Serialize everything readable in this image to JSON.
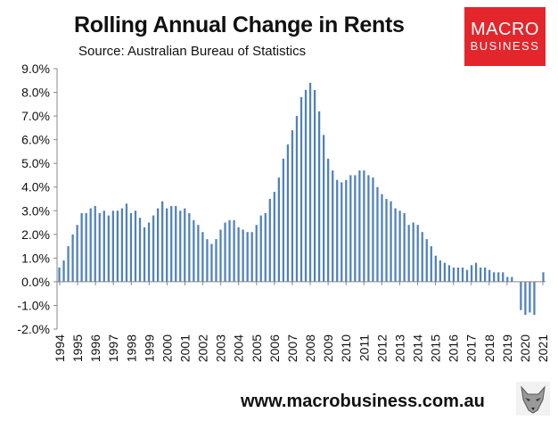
{
  "header": {
    "title": "Rolling Annual Change in Rents",
    "subtitle": "Source: Australian Bureau of Statistics"
  },
  "logo": {
    "line1": "MACRO",
    "line2": "BUSINESS"
  },
  "footer": {
    "url": "www.macrobusiness.com.au"
  },
  "colors": {
    "bar": "#4f81bd",
    "axis": "#888888",
    "logo_bg": "#e3262b"
  },
  "chart_data": {
    "type": "bar",
    "title": "Rolling Annual Change in Rents",
    "xlabel": "",
    "ylabel": "",
    "ylim": [
      -2.0,
      9.0
    ],
    "ytick_labels": [
      "9.0%",
      "8.0%",
      "7.0%",
      "6.0%",
      "5.0%",
      "4.0%",
      "3.0%",
      "2.0%",
      "1.0%",
      "0.0%",
      "-1.0%",
      "-2.0%"
    ],
    "ytick_values": [
      9,
      8,
      7,
      6,
      5,
      4,
      3,
      2,
      1,
      0,
      -1,
      -2
    ],
    "year_labels": [
      "1994",
      "1995",
      "1996",
      "1997",
      "1998",
      "1999",
      "2000",
      "2001",
      "2002",
      "2003",
      "2004",
      "2005",
      "2006",
      "2007",
      "2008",
      "2009",
      "2010",
      "2011",
      "2012",
      "2013",
      "2014",
      "2015",
      "2016",
      "2017",
      "2018",
      "2019",
      "2020",
      "2021"
    ],
    "series": [
      {
        "name": "Rolling Annual Change in Rents",
        "values": [
          0.6,
          0.9,
          1.5,
          2.0,
          2.4,
          2.9,
          2.9,
          3.1,
          3.2,
          2.9,
          3.0,
          2.8,
          3.0,
          3.0,
          3.1,
          3.3,
          2.9,
          3.0,
          2.7,
          2.3,
          2.5,
          2.8,
          3.1,
          3.4,
          3.1,
          3.2,
          3.2,
          3.0,
          3.1,
          2.9,
          2.6,
          2.4,
          2.1,
          1.8,
          1.6,
          1.8,
          2.2,
          2.5,
          2.6,
          2.6,
          2.3,
          2.2,
          2.1,
          2.1,
          2.4,
          2.8,
          2.9,
          3.5,
          3.8,
          4.4,
          5.2,
          5.8,
          6.4,
          7.0,
          7.8,
          8.1,
          8.4,
          8.1,
          7.2,
          6.2,
          5.2,
          4.7,
          4.3,
          4.2,
          4.3,
          4.5,
          4.5,
          4.7,
          4.7,
          4.5,
          4.4,
          4.0,
          3.7,
          3.5,
          3.4,
          3.1,
          3.0,
          2.9,
          2.4,
          2.5,
          2.4,
          2.1,
          1.8,
          1.5,
          1.1,
          0.9,
          0.8,
          0.7,
          0.6,
          0.6,
          0.6,
          0.5,
          0.7,
          0.8,
          0.6,
          0.6,
          0.5,
          0.4,
          0.4,
          0.4,
          0.2,
          0.2,
          0.0,
          -1.2,
          -1.4,
          -1.3,
          -1.4,
          0.0,
          0.4
        ]
      }
    ]
  }
}
